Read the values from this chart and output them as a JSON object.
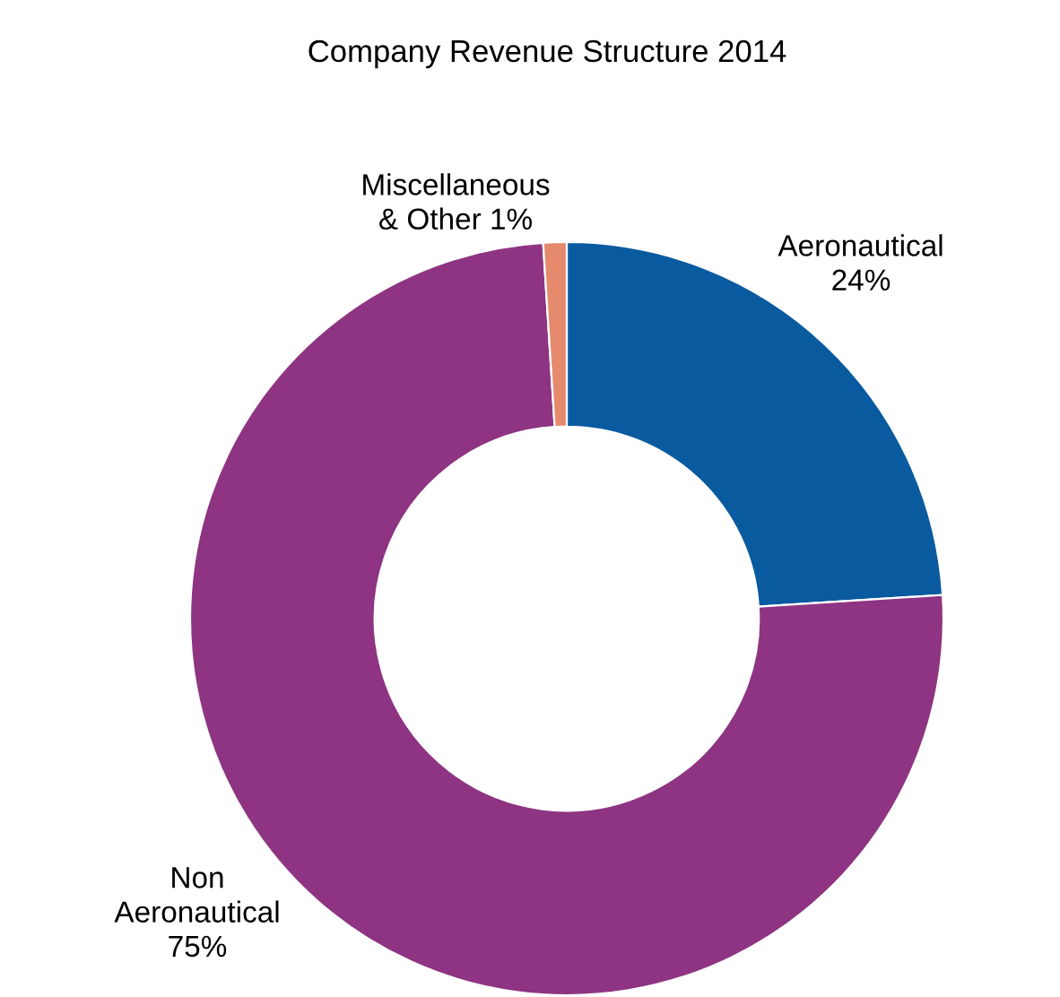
{
  "chart_data": {
    "type": "donut",
    "title": "Company Revenue Structure 2014",
    "categories": [
      "Aeronautical",
      "Non Aeronautical",
      "Miscellaneous & Other"
    ],
    "values": [
      24,
      75,
      1
    ],
    "value_labels": [
      "24%",
      "75%",
      "1%"
    ],
    "colors": [
      "#0a5aa0",
      "#8e3482",
      "#e58a6d"
    ],
    "legend": false
  }
}
